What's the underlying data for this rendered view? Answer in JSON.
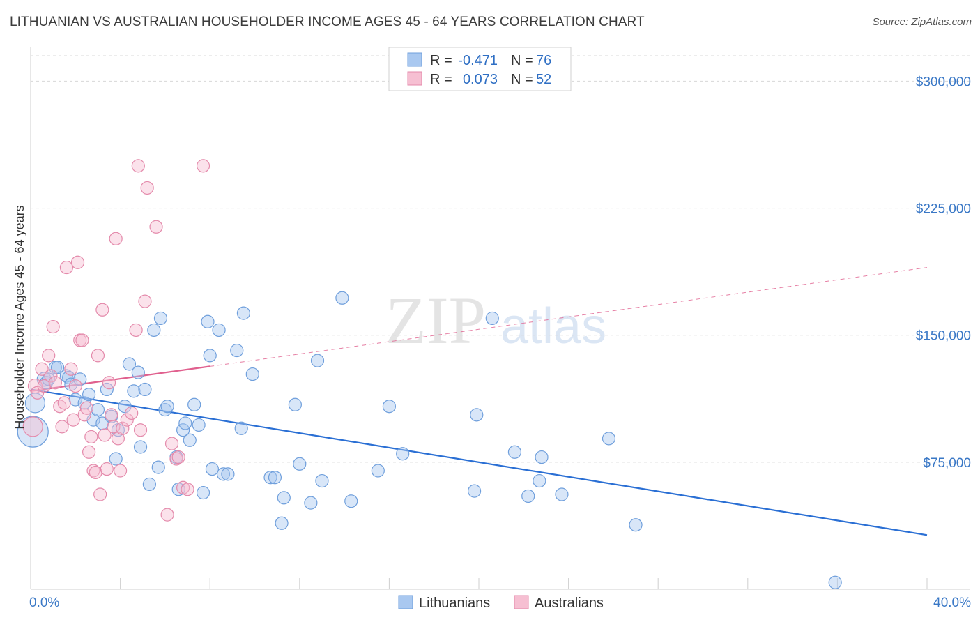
{
  "title": "LITHUANIAN VS AUSTRALIAN HOUSEHOLDER INCOME AGES 45 - 64 YEARS CORRELATION CHART",
  "source": "Source: ZipAtlas.com",
  "watermark": {
    "zip": "ZIP",
    "atlas": "atlas"
  },
  "colors": {
    "lithuanians_fill": "#a9c8f0",
    "lithuanians_stroke": "#6f9fdc",
    "lithuanians_line": "#2a6fd4",
    "australians_fill": "#f6bfd2",
    "australians_stroke": "#e48aab",
    "australians_line": "#e0608e",
    "tick_text": "#3a78c6",
    "grid": "#d8d8d8"
  },
  "legend": {
    "r_label": "R =",
    "n_label": "N =",
    "rows": [
      {
        "series": "lithuanians",
        "r": "-0.471",
        "n": "76"
      },
      {
        "series": "australians",
        "r": "0.073",
        "n": "52"
      }
    ]
  },
  "chart_data": {
    "type": "scatter",
    "title": "LITHUANIAN VS AUSTRALIAN HOUSEHOLDER INCOME AGES 45 - 64 YEARS CORRELATION CHART",
    "xlabel": "",
    "ylabel": "Householder Income Ages 45 - 64 years",
    "xlim": [
      0,
      40
    ],
    "ylim": [
      0,
      315000
    ],
    "x_tick_labels": [
      "0.0%",
      "40.0%"
    ],
    "y_ticks": [
      75000,
      150000,
      225000,
      300000
    ],
    "y_tick_labels": [
      "$75,000",
      "$150,000",
      "$225,000",
      "$300,000"
    ],
    "grid": true,
    "legend_placement": "top-center and bottom",
    "series": [
      {
        "name": "Lithuanians",
        "key": "lithuanians",
        "trend": {
          "x": [
            0,
            40
          ],
          "y": [
            118000,
            32000
          ],
          "style": "solid"
        },
        "points": [
          [
            0.1,
            93000,
            22
          ],
          [
            0.2,
            110000,
            14
          ],
          [
            0.6,
            124000,
            10
          ],
          [
            0.7,
            122000,
            9
          ],
          [
            0.8,
            124000,
            9
          ],
          [
            1.1,
            131000,
            9
          ],
          [
            1.2,
            131000,
            9
          ],
          [
            1.6,
            126000,
            9
          ],
          [
            1.7,
            125000,
            9
          ],
          [
            1.8,
            121000,
            9
          ],
          [
            2.0,
            112000,
            9
          ],
          [
            2.2,
            124000,
            9
          ],
          [
            2.4,
            110000,
            9
          ],
          [
            2.6,
            115000,
            9
          ],
          [
            2.8,
            100000,
            9
          ],
          [
            3.0,
            106000,
            9
          ],
          [
            3.2,
            98000,
            9
          ],
          [
            3.4,
            118000,
            9
          ],
          [
            3.6,
            102000,
            9
          ],
          [
            3.8,
            77000,
            9
          ],
          [
            3.9,
            94000,
            9
          ],
          [
            4.2,
            108000,
            9
          ],
          [
            4.4,
            133000,
            9
          ],
          [
            4.6,
            117000,
            9
          ],
          [
            4.8,
            128000,
            9
          ],
          [
            4.9,
            84000,
            9
          ],
          [
            5.1,
            118000,
            9
          ],
          [
            5.3,
            62000,
            9
          ],
          [
            5.5,
            153000,
            9
          ],
          [
            5.7,
            72000,
            9
          ],
          [
            5.8,
            160000,
            9
          ],
          [
            6.0,
            106000,
            9
          ],
          [
            6.1,
            108000,
            9
          ],
          [
            6.5,
            78000,
            9
          ],
          [
            6.6,
            59000,
            9
          ],
          [
            6.8,
            94000,
            9
          ],
          [
            6.9,
            98000,
            9
          ],
          [
            7.1,
            88000,
            9
          ],
          [
            7.3,
            109000,
            9
          ],
          [
            7.5,
            97000,
            9
          ],
          [
            7.7,
            57000,
            9
          ],
          [
            7.9,
            158000,
            9
          ],
          [
            8.0,
            138000,
            9
          ],
          [
            8.1,
            71000,
            9
          ],
          [
            8.4,
            153000,
            9
          ],
          [
            8.6,
            68000,
            9
          ],
          [
            8.8,
            68000,
            9
          ],
          [
            9.2,
            141000,
            9
          ],
          [
            9.4,
            95000,
            9
          ],
          [
            9.5,
            163000,
            9
          ],
          [
            9.9,
            127000,
            9
          ],
          [
            10.7,
            66000,
            9
          ],
          [
            10.9,
            66000,
            9
          ],
          [
            11.2,
            39000,
            9
          ],
          [
            11.3,
            54000,
            9
          ],
          [
            11.8,
            109000,
            9
          ],
          [
            12.0,
            74000,
            9
          ],
          [
            12.5,
            51000,
            9
          ],
          [
            12.8,
            135000,
            9
          ],
          [
            13.0,
            64000,
            9
          ],
          [
            13.9,
            172000,
            9
          ],
          [
            14.3,
            52000,
            9
          ],
          [
            15.5,
            70000,
            9
          ],
          [
            16.0,
            108000,
            9
          ],
          [
            16.6,
            80000,
            9
          ],
          [
            19.8,
            58000,
            9
          ],
          [
            19.9,
            103000,
            9
          ],
          [
            20.6,
            160000,
            9
          ],
          [
            21.6,
            81000,
            9
          ],
          [
            22.2,
            55000,
            9
          ],
          [
            22.7,
            64000,
            9
          ],
          [
            22.8,
            78000,
            9
          ],
          [
            23.7,
            56000,
            9
          ],
          [
            25.8,
            89000,
            9
          ],
          [
            27.0,
            38000,
            9
          ],
          [
            35.9,
            4000,
            9
          ]
        ]
      },
      {
        "name": "Australians",
        "key": "australians",
        "trend": {
          "x": [
            0,
            40
          ],
          "y": [
            117000,
            190000
          ],
          "style": "solid-then-dashed",
          "solid_until": 8
        },
        "points": [
          [
            0.1,
            96000,
            14
          ],
          [
            0.2,
            120000,
            10
          ],
          [
            0.3,
            116000,
            9
          ],
          [
            0.5,
            130000,
            9
          ],
          [
            0.6,
            120000,
            9
          ],
          [
            0.8,
            138000,
            9
          ],
          [
            0.9,
            126000,
            9
          ],
          [
            1.0,
            155000,
            9
          ],
          [
            1.1,
            122000,
            9
          ],
          [
            1.3,
            108000,
            9
          ],
          [
            1.4,
            96000,
            9
          ],
          [
            1.5,
            110000,
            9
          ],
          [
            1.6,
            190000,
            9
          ],
          [
            1.8,
            130000,
            9
          ],
          [
            1.9,
            100000,
            9
          ],
          [
            2.0,
            120000,
            9
          ],
          [
            2.1,
            193000,
            9
          ],
          [
            2.2,
            147000,
            9
          ],
          [
            2.3,
            147000,
            9
          ],
          [
            2.4,
            103000,
            9
          ],
          [
            2.5,
            107000,
            9
          ],
          [
            2.6,
            81000,
            9
          ],
          [
            2.7,
            90000,
            9
          ],
          [
            2.8,
            70000,
            9
          ],
          [
            2.9,
            69000,
            9
          ],
          [
            3.0,
            138000,
            9
          ],
          [
            3.1,
            56000,
            9
          ],
          [
            3.2,
            165000,
            9
          ],
          [
            3.3,
            91000,
            9
          ],
          [
            3.4,
            71000,
            9
          ],
          [
            3.5,
            122000,
            9
          ],
          [
            3.6,
            103000,
            9
          ],
          [
            3.7,
            96000,
            9
          ],
          [
            3.8,
            207000,
            9
          ],
          [
            3.9,
            89000,
            9
          ],
          [
            4.0,
            70000,
            9
          ],
          [
            4.1,
            95000,
            9
          ],
          [
            4.3,
            100000,
            9
          ],
          [
            4.5,
            104000,
            9
          ],
          [
            4.7,
            153000,
            9
          ],
          [
            4.8,
            250000,
            9
          ],
          [
            4.9,
            94000,
            9
          ],
          [
            5.1,
            170000,
            9
          ],
          [
            5.2,
            237000,
            9
          ],
          [
            5.6,
            214000,
            9
          ],
          [
            6.1,
            44000,
            9
          ],
          [
            6.3,
            86000,
            9
          ],
          [
            6.5,
            77000,
            9
          ],
          [
            6.6,
            78000,
            9
          ],
          [
            6.8,
            60000,
            9
          ],
          [
            7.0,
            59000,
            9
          ],
          [
            7.7,
            250000,
            9
          ]
        ]
      }
    ]
  },
  "bottom_legend": [
    {
      "series": "lithuanians",
      "label": "Lithuanians"
    },
    {
      "series": "australians",
      "label": "Australians"
    }
  ]
}
